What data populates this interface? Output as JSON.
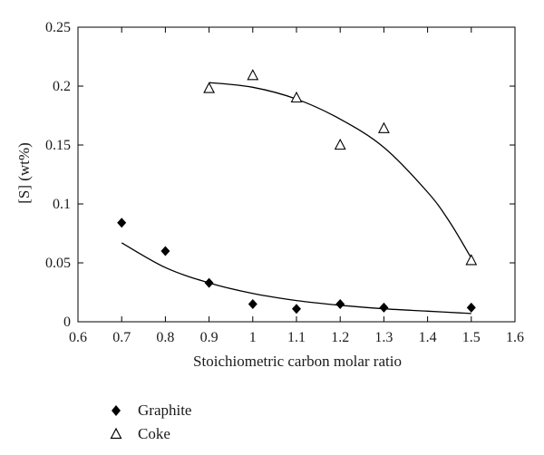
{
  "chart_data": {
    "type": "scatter",
    "xlabel": "Stoichiometric carbon molar ratio",
    "ylabel": "[S] (wt%)",
    "xlim": [
      0.6,
      1.6
    ],
    "ylim": [
      0,
      0.25
    ],
    "xticks": [
      "0.6",
      "0.7",
      "0.8",
      "0.9",
      "1",
      "1.1",
      "1.2",
      "1.3",
      "1.4",
      "1.5",
      "1.6"
    ],
    "yticks": [
      "0",
      "0.05",
      "0.1",
      "0.15",
      "0.2",
      "0.25"
    ],
    "grid": false,
    "legend_position": "bottom-left, below plot",
    "series": [
      {
        "name": "Graphite",
        "marker": "filled-diamond",
        "color": "#000000",
        "points": [
          {
            "x": 0.7,
            "y": 0.084
          },
          {
            "x": 0.8,
            "y": 0.06
          },
          {
            "x": 0.9,
            "y": 0.033
          },
          {
            "x": 1.0,
            "y": 0.015
          },
          {
            "x": 1.1,
            "y": 0.011
          },
          {
            "x": 1.2,
            "y": 0.015
          },
          {
            "x": 1.3,
            "y": 0.012
          },
          {
            "x": 1.5,
            "y": 0.012
          }
        ],
        "fit_curve": [
          {
            "x": 0.7,
            "y": 0.067
          },
          {
            "x": 0.8,
            "y": 0.046
          },
          {
            "x": 0.9,
            "y": 0.033
          },
          {
            "x": 1.0,
            "y": 0.024
          },
          {
            "x": 1.1,
            "y": 0.018
          },
          {
            "x": 1.2,
            "y": 0.014
          },
          {
            "x": 1.3,
            "y": 0.011
          },
          {
            "x": 1.4,
            "y": 0.009
          },
          {
            "x": 1.5,
            "y": 0.007
          }
        ]
      },
      {
        "name": "Coke",
        "marker": "open-triangle",
        "color": "#000000",
        "points": [
          {
            "x": 0.9,
            "y": 0.198
          },
          {
            "x": 1.0,
            "y": 0.209
          },
          {
            "x": 1.1,
            "y": 0.19
          },
          {
            "x": 1.2,
            "y": 0.15
          },
          {
            "x": 1.3,
            "y": 0.164
          },
          {
            "x": 1.5,
            "y": 0.052
          }
        ],
        "fit_curve": [
          {
            "x": 0.9,
            "y": 0.203
          },
          {
            "x": 1.0,
            "y": 0.199
          },
          {
            "x": 1.1,
            "y": 0.189
          },
          {
            "x": 1.2,
            "y": 0.172
          },
          {
            "x": 1.3,
            "y": 0.148
          },
          {
            "x": 1.4,
            "y": 0.11
          },
          {
            "x": 1.45,
            "y": 0.085
          },
          {
            "x": 1.5,
            "y": 0.054
          }
        ]
      }
    ]
  }
}
